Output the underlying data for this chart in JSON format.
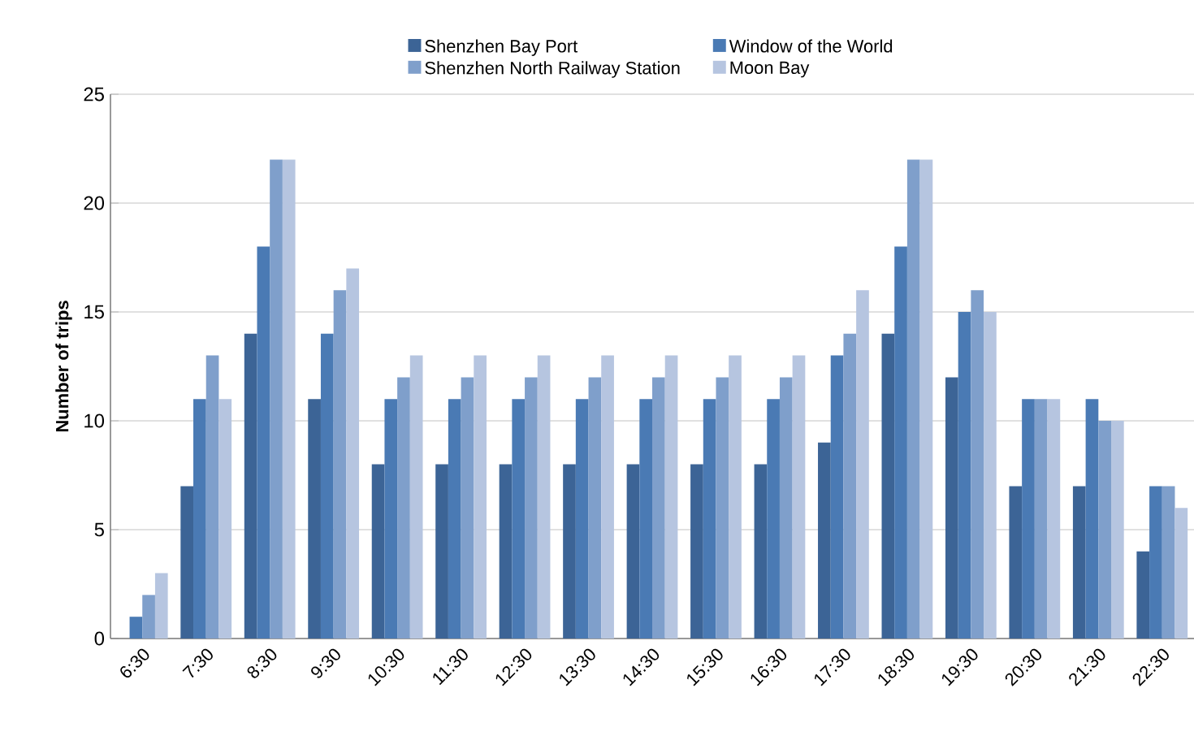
{
  "chart_data": {
    "type": "bar",
    "ylabel": "Number of trips",
    "categories": [
      "6:30",
      "7:30",
      "8:30",
      "9:30",
      "10:30",
      "11:30",
      "12:30",
      "13:30",
      "14:30",
      "15:30",
      "16:30",
      "17:30",
      "18:30",
      "19:30",
      "20:30",
      "21:30",
      "22:30"
    ],
    "series": [
      {
        "name": "Shenzhen Bay Port",
        "color": "#3c6496",
        "values": [
          0,
          7,
          14,
          11,
          8,
          8,
          8,
          8,
          8,
          8,
          8,
          9,
          14,
          12,
          7,
          7,
          4
        ]
      },
      {
        "name": "Window of the World",
        "color": "#4a7ab4",
        "values": [
          1,
          11,
          18,
          14,
          11,
          11,
          11,
          11,
          11,
          11,
          11,
          13,
          18,
          15,
          11,
          11,
          7
        ]
      },
      {
        "name": "Shenzhen North Railway Station",
        "color": "#7f9fcb",
        "values": [
          2,
          13,
          22,
          16,
          12,
          12,
          12,
          12,
          12,
          12,
          12,
          14,
          22,
          16,
          11,
          10,
          7
        ]
      },
      {
        "name": "Moon Bay",
        "color": "#b6c5e0",
        "values": [
          3,
          11,
          22,
          17,
          13,
          13,
          13,
          13,
          13,
          13,
          13,
          16,
          22,
          15,
          11,
          10,
          6
        ]
      }
    ],
    "ylim": [
      0,
      25
    ],
    "yticks": [
      0,
      5,
      10,
      15,
      20,
      25
    ],
    "grid": "y",
    "legend": "top"
  }
}
